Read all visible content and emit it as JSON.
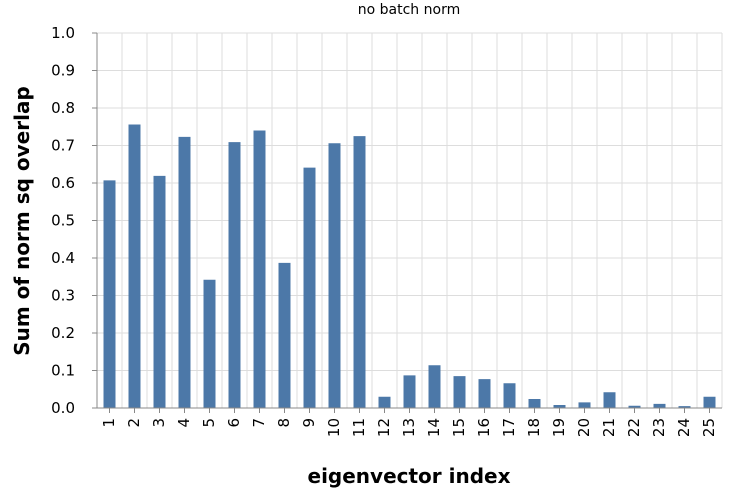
{
  "chart_data": {
    "type": "bar",
    "title": "no batch norm",
    "xlabel": "eigenvector index",
    "ylabel": "Sum of norm sq overlap",
    "ylim": [
      0,
      1.0
    ],
    "yticks": [
      "0.0",
      "0.1",
      "0.2",
      "0.3",
      "0.4",
      "0.5",
      "0.6",
      "0.7",
      "0.8",
      "0.9",
      "1.0"
    ],
    "categories": [
      "1",
      "2",
      "3",
      "4",
      "5",
      "6",
      "7",
      "8",
      "9",
      "10",
      "11",
      "12",
      "13",
      "14",
      "15",
      "16",
      "17",
      "18",
      "19",
      "20",
      "21",
      "22",
      "23",
      "24",
      "25"
    ],
    "values": [
      0.607,
      0.756,
      0.619,
      0.723,
      0.342,
      0.709,
      0.74,
      0.387,
      0.641,
      0.706,
      0.725,
      0.03,
      0.087,
      0.114,
      0.085,
      0.077,
      0.066,
      0.024,
      0.008,
      0.015,
      0.042,
      0.006,
      0.011,
      0.005,
      0.03
    ],
    "bar_color": "#4c78a8",
    "grid": true,
    "legend": "none"
  },
  "colors": {
    "grid": "#dddddd",
    "axis": "#888888"
  }
}
